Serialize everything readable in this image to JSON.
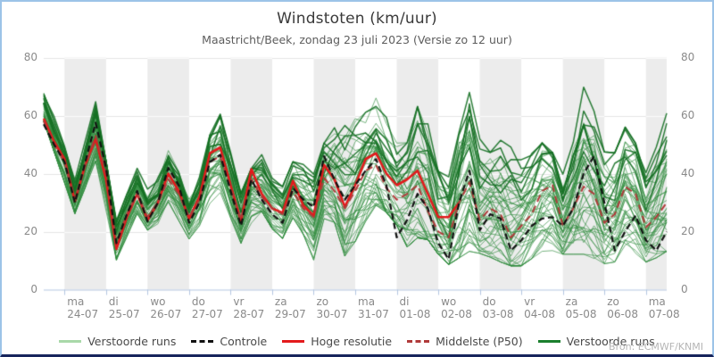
{
  "header": {
    "title": "Windstoten (km/uur)",
    "subtitle": "Maastricht/Beek, zondag 23 juli 2023 (Versie zo 12 uur)"
  },
  "attribution": "Bron: ECMWF/KNMI",
  "colors": {
    "frame_border": "#9cc3e8",
    "frame_bottom": "#17255c",
    "band_gray": "#ececec",
    "grid_on_white": "#e4e4e4",
    "grid_on_band": "#fbfbfb",
    "axis_line": "#b3c6e0",
    "ensemble_green": "#2e8b3c",
    "ensemble_green_bold": "#157023",
    "control_black": "#111111",
    "hires_red": "#e31a1c",
    "p50_darkred": "#b03a3a",
    "legend_pale_green": "#a9d8a9"
  },
  "chart_data": {
    "type": "line",
    "title": "Windstoten (km/uur)",
    "subtitle": "Maastricht/Beek, zondag 23 juli 2023 (Versie zo 12 uur)",
    "ylabel": "",
    "xlabel": "",
    "ylim": [
      0,
      80
    ],
    "yticks": [
      0,
      20,
      40,
      60,
      80
    ],
    "grid": true,
    "legend_position": "bottom",
    "time_axis_note": "t is in days since run start zo 23-07-2023 12:00; day boundaries at t=0.5+k; shaded bands on even k (24-07, 26-07, ...)",
    "x_days": 15,
    "x_labels": [
      {
        "day": "ma",
        "date": "24-07"
      },
      {
        "day": "di",
        "date": "25-07"
      },
      {
        "day": "wo",
        "date": "26-07"
      },
      {
        "day": "do",
        "date": "27-07"
      },
      {
        "day": "vr",
        "date": "28-07"
      },
      {
        "day": "za",
        "date": "29-07"
      },
      {
        "day": "zo",
        "date": "30-07"
      },
      {
        "day": "ma",
        "date": "31-07"
      },
      {
        "day": "di",
        "date": "01-08"
      },
      {
        "day": "wo",
        "date": "02-08"
      },
      {
        "day": "do",
        "date": "03-08"
      },
      {
        "day": "vr",
        "date": "04-08"
      },
      {
        "day": "za",
        "date": "05-08"
      },
      {
        "day": "zo",
        "date": "06-08"
      },
      {
        "day": "ma",
        "date": "07-08"
      }
    ],
    "series": [
      {
        "name": "Controle",
        "color": "#111111",
        "dash": [
          7,
          4
        ],
        "width": 2.2,
        "points": [
          [
            0,
            57
          ],
          [
            0.25,
            50
          ],
          [
            0.5,
            44
          ],
          [
            0.75,
            30
          ],
          [
            1,
            44
          ],
          [
            1.25,
            57.5
          ],
          [
            1.5,
            42
          ],
          [
            1.75,
            16
          ],
          [
            2,
            26
          ],
          [
            2.25,
            34
          ],
          [
            2.5,
            23.5
          ],
          [
            2.75,
            30
          ],
          [
            3,
            42
          ],
          [
            3.25,
            36
          ],
          [
            3.5,
            23
          ],
          [
            3.75,
            30
          ],
          [
            4,
            44
          ],
          [
            4.25,
            46.5
          ],
          [
            4.5,
            34
          ],
          [
            4.75,
            22
          ],
          [
            5,
            38
          ],
          [
            5.25,
            31
          ],
          [
            5.5,
            26
          ],
          [
            5.75,
            23
          ],
          [
            6,
            35
          ],
          [
            6.25,
            31
          ],
          [
            6.5,
            28.5
          ],
          [
            6.75,
            46
          ],
          [
            7,
            38
          ],
          [
            7.25,
            31
          ],
          [
            7.5,
            36
          ],
          [
            7.75,
            41
          ],
          [
            8,
            45
          ],
          [
            8.25,
            36
          ],
          [
            8.5,
            18
          ],
          [
            8.75,
            24
          ],
          [
            9,
            33
          ],
          [
            9.25,
            28
          ],
          [
            9.5,
            16
          ],
          [
            9.75,
            10.5
          ],
          [
            10,
            30
          ],
          [
            10.25,
            41
          ],
          [
            10.5,
            20.5
          ],
          [
            10.75,
            26
          ],
          [
            11,
            24.5
          ],
          [
            11.25,
            13.5
          ],
          [
            11.5,
            17
          ],
          [
            11.75,
            22
          ],
          [
            12,
            24.5
          ],
          [
            12.25,
            25
          ],
          [
            12.5,
            22
          ],
          [
            12.75,
            28
          ],
          [
            13,
            40
          ],
          [
            13.25,
            46
          ],
          [
            13.5,
            30
          ],
          [
            13.75,
            13.5
          ],
          [
            14,
            20
          ],
          [
            14.25,
            25.5
          ],
          [
            14.5,
            17
          ],
          [
            14.75,
            13.5
          ],
          [
            15,
            20
          ]
        ]
      },
      {
        "name": "Hoge resolutie",
        "color": "#e31a1c",
        "dash": null,
        "width": 2.6,
        "points": [
          [
            0,
            59
          ],
          [
            0.25,
            51
          ],
          [
            0.5,
            45
          ],
          [
            0.75,
            30.5
          ],
          [
            1,
            43
          ],
          [
            1.25,
            52
          ],
          [
            1.5,
            38
          ],
          [
            1.75,
            14
          ],
          [
            2,
            25
          ],
          [
            2.25,
            33
          ],
          [
            2.5,
            24
          ],
          [
            2.75,
            30
          ],
          [
            3,
            40
          ],
          [
            3.25,
            34
          ],
          [
            3.5,
            24.5
          ],
          [
            3.75,
            32
          ],
          [
            4,
            47
          ],
          [
            4.25,
            49
          ],
          [
            4.5,
            36
          ],
          [
            4.75,
            23.5
          ],
          [
            5,
            41.5
          ],
          [
            5.25,
            33
          ],
          [
            5.5,
            28
          ],
          [
            5.75,
            26.5
          ],
          [
            6,
            37.5
          ],
          [
            6.25,
            29
          ],
          [
            6.5,
            25.5
          ],
          [
            6.75,
            43
          ],
          [
            7,
            38
          ],
          [
            7.25,
            28.5
          ],
          [
            7.5,
            36
          ],
          [
            7.75,
            45
          ],
          [
            8,
            47
          ],
          [
            8.25,
            40
          ],
          [
            8.5,
            36
          ],
          [
            8.75,
            38
          ],
          [
            9,
            41
          ],
          [
            9.25,
            33
          ],
          [
            9.5,
            25
          ],
          [
            9.75,
            25
          ],
          [
            10,
            30
          ]
        ]
      },
      {
        "name": "Middelste (P50)",
        "color": "#b03a3a",
        "dash": [
          8,
          5
        ],
        "width": 2.0,
        "points": [
          [
            0,
            58
          ],
          [
            0.25,
            50
          ],
          [
            0.5,
            44
          ],
          [
            0.75,
            31
          ],
          [
            1,
            43
          ],
          [
            1.25,
            53
          ],
          [
            1.5,
            40
          ],
          [
            1.75,
            16
          ],
          [
            2,
            26
          ],
          [
            2.25,
            33
          ],
          [
            2.5,
            25
          ],
          [
            2.75,
            30
          ],
          [
            3,
            38
          ],
          [
            3.25,
            33
          ],
          [
            3.5,
            25
          ],
          [
            3.75,
            31
          ],
          [
            4,
            44
          ],
          [
            4.25,
            46
          ],
          [
            4.5,
            35
          ],
          [
            4.75,
            24
          ],
          [
            5,
            38
          ],
          [
            5.25,
            32
          ],
          [
            5.5,
            28
          ],
          [
            5.75,
            26
          ],
          [
            6,
            34
          ],
          [
            6.25,
            28
          ],
          [
            6.5,
            25
          ],
          [
            6.75,
            38.5
          ],
          [
            7,
            34
          ],
          [
            7.25,
            28
          ],
          [
            7.5,
            34
          ],
          [
            7.75,
            41
          ],
          [
            8,
            43
          ],
          [
            8.25,
            35
          ],
          [
            8.5,
            31
          ],
          [
            8.75,
            33
          ],
          [
            9,
            36
          ],
          [
            9.25,
            27
          ],
          [
            9.5,
            20
          ],
          [
            9.75,
            18
          ],
          [
            10,
            30
          ],
          [
            10.25,
            37
          ],
          [
            10.5,
            24
          ],
          [
            10.75,
            28
          ],
          [
            11,
            26
          ],
          [
            11.25,
            18
          ],
          [
            11.5,
            22
          ],
          [
            11.75,
            26
          ],
          [
            12,
            34
          ],
          [
            12.25,
            36
          ],
          [
            12.5,
            22
          ],
          [
            12.75,
            28
          ],
          [
            13,
            35.5
          ],
          [
            13.25,
            33
          ],
          [
            13.5,
            23
          ],
          [
            13.75,
            26
          ],
          [
            14,
            35.5
          ],
          [
            14.25,
            33
          ],
          [
            14.5,
            21.5
          ],
          [
            14.75,
            25
          ],
          [
            15,
            30
          ]
        ]
      }
    ],
    "ensemble": {
      "name": "Verstoorde runs",
      "count": 50,
      "color": "#2e8b3c",
      "bold_color": "#157023",
      "envelope": [
        [
          0,
          58,
          73
        ],
        [
          0.75,
          26,
          38
        ],
        [
          1.25,
          44,
          65
        ],
        [
          1.75,
          10,
          24
        ],
        [
          2.25,
          26,
          42
        ],
        [
          2.6,
          18,
          32
        ],
        [
          3,
          30,
          50
        ],
        [
          3.55,
          16,
          30
        ],
        [
          4.2,
          35,
          64
        ],
        [
          4.8,
          14,
          32
        ],
        [
          5.2,
          28,
          52
        ],
        [
          5.7,
          16,
          34
        ],
        [
          6.05,
          26,
          46
        ],
        [
          6.5,
          10,
          40
        ],
        [
          6.85,
          30,
          55
        ],
        [
          7.3,
          9,
          62
        ],
        [
          7.6,
          20,
          58
        ],
        [
          8.05,
          30,
          68
        ],
        [
          8.5,
          22,
          55
        ],
        [
          8.8,
          13,
          50
        ],
        [
          9.1,
          20,
          70
        ],
        [
          9.7,
          8,
          36
        ],
        [
          10.25,
          13,
          70
        ],
        [
          10.6,
          12,
          45
        ],
        [
          11.2,
          8,
          55
        ],
        [
          11.5,
          8,
          45
        ],
        [
          12.1,
          14,
          52
        ],
        [
          12.5,
          12,
          40
        ],
        [
          13.05,
          12,
          73
        ],
        [
          13.6,
          8,
          42
        ],
        [
          14.05,
          12,
          58
        ],
        [
          14.55,
          9,
          40
        ],
        [
          15,
          13,
          61
        ]
      ]
    },
    "legend": [
      {
        "label": "Verstoorde runs",
        "color": "#a9d8a9",
        "dashed": false
      },
      {
        "label": "Controle",
        "color": "#111111",
        "dashed": true
      },
      {
        "label": "Hoge resolutie",
        "color": "#e31a1c",
        "dashed": false
      },
      {
        "label": "Middelste (P50)",
        "color": "#b03a3a",
        "dashed": true
      },
      {
        "label": "Verstoorde runs",
        "color": "#1b7f2e",
        "dashed": false
      }
    ]
  }
}
